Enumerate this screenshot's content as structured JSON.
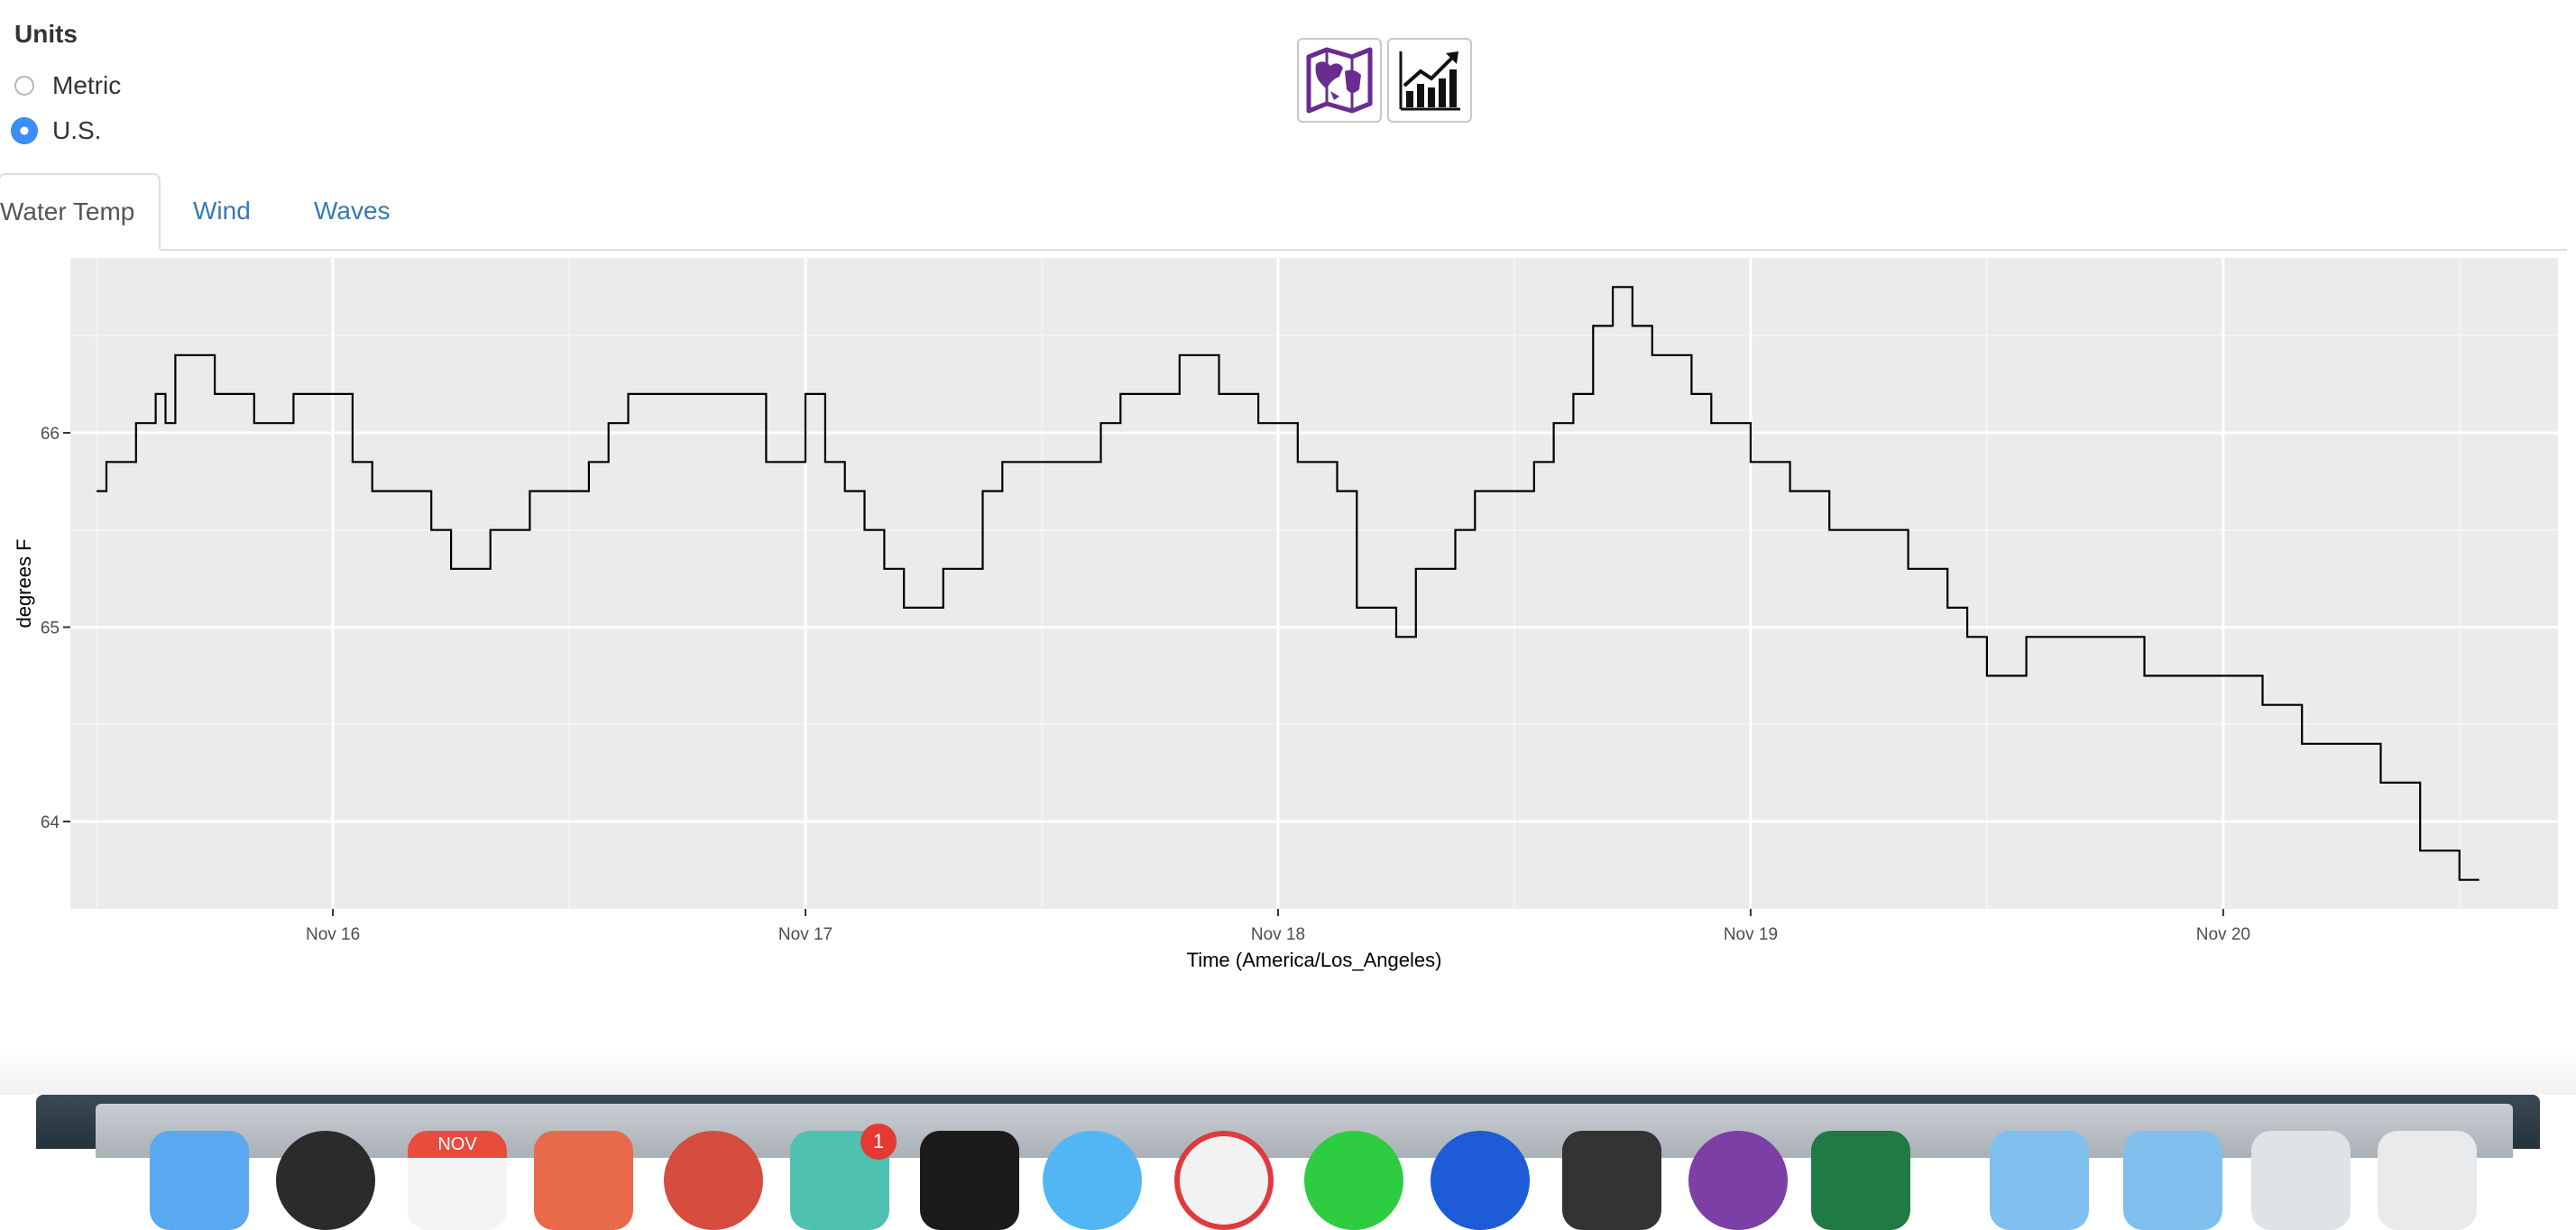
{
  "units": {
    "title": "Units",
    "options": [
      {
        "label": "Metric",
        "selected": false
      },
      {
        "label": "U.S.",
        "selected": true
      }
    ]
  },
  "toolbar": {
    "map_icon": "map-icon",
    "chart_icon": "chart-icon",
    "accent": "#6a2c91"
  },
  "tabs": [
    {
      "label": "Water Temp",
      "active": true
    },
    {
      "label": "Wind",
      "active": false
    },
    {
      "label": "Waves",
      "active": false
    }
  ],
  "chart_data": {
    "type": "line",
    "xlabel": "Time (America/Los_Angeles)",
    "ylabel": "degrees F",
    "x_ticks": [
      "Nov 16",
      "Nov 17",
      "Nov 18",
      "Nov 19",
      "Nov 20"
    ],
    "y_ticks": [
      64,
      65,
      66
    ],
    "xlim": [
      "2016-11-15T10:40",
      "2016-11-20T17:00"
    ],
    "ylim": [
      63.55,
      66.9
    ],
    "grid": true,
    "series": [
      {
        "x": [
          "2016-11-15T12:00",
          "2016-11-15T12:30",
          "2016-11-15T13:00",
          "2016-11-15T14:00",
          "2016-11-15T15:00",
          "2016-11-15T15:30",
          "2016-11-15T16:00",
          "2016-11-15T17:00",
          "2016-11-15T18:00",
          "2016-11-15T19:00",
          "2016-11-15T20:00",
          "2016-11-15T21:00",
          "2016-11-15T22:00",
          "2016-11-16T00:00",
          "2016-11-16T01:00",
          "2016-11-16T02:00",
          "2016-11-16T03:00",
          "2016-11-16T05:00",
          "2016-11-16T06:00",
          "2016-11-16T07:00",
          "2016-11-16T08:00",
          "2016-11-16T09:00",
          "2016-11-16T10:00",
          "2016-11-16T11:00",
          "2016-11-16T13:00",
          "2016-11-16T14:00",
          "2016-11-16T15:00",
          "2016-11-16T17:00",
          "2016-11-16T19:00",
          "2016-11-16T20:00",
          "2016-11-16T22:00",
          "2016-11-17T00:00",
          "2016-11-17T01:00",
          "2016-11-17T02:00",
          "2016-11-17T03:00",
          "2016-11-17T04:00",
          "2016-11-17T05:00",
          "2016-11-17T06:00",
          "2016-11-17T07:00",
          "2016-11-17T09:00",
          "2016-11-17T10:00",
          "2016-11-17T11:00",
          "2016-11-17T13:00",
          "2016-11-17T15:00",
          "2016-11-17T16:00",
          "2016-11-17T17:00",
          "2016-11-17T19:00",
          "2016-11-17T21:00",
          "2016-11-17T23:00",
          "2016-11-18T00:00",
          "2016-11-18T01:00",
          "2016-11-18T02:00",
          "2016-11-18T03:00",
          "2016-11-18T04:00",
          "2016-11-18T06:00",
          "2016-11-18T07:00",
          "2016-11-18T09:00",
          "2016-11-18T10:00",
          "2016-11-18T11:00",
          "2016-11-18T12:00",
          "2016-11-18T13:00",
          "2016-11-18T14:00",
          "2016-11-18T15:00",
          "2016-11-18T16:00",
          "2016-11-18T17:00",
          "2016-11-18T18:00",
          "2016-11-18T19:00",
          "2016-11-18T20:00",
          "2016-11-18T21:00",
          "2016-11-18T22:00",
          "2016-11-19T00:00",
          "2016-11-19T02:00",
          "2016-11-19T04:00",
          "2016-11-19T05:00",
          "2016-11-19T06:00",
          "2016-11-19T07:00",
          "2016-11-19T08:00",
          "2016-11-19T09:00",
          "2016-11-19T10:00",
          "2016-11-19T11:00",
          "2016-11-19T12:00",
          "2016-11-19T14:00",
          "2016-11-19T16:00",
          "2016-11-19T18:00",
          "2016-11-19T20:00",
          "2016-11-19T22:00",
          "2016-11-20T00:00",
          "2016-11-20T02:00",
          "2016-11-20T04:00",
          "2016-11-20T06:00",
          "2016-11-20T07:00",
          "2016-11-20T08:00",
          "2016-11-20T10:00",
          "2016-11-20T12:00"
        ],
        "y": [
          65.7,
          65.85,
          65.85,
          66.05,
          66.2,
          66.05,
          66.4,
          66.4,
          66.2,
          66.2,
          66.05,
          66.05,
          66.2,
          66.2,
          65.85,
          65.7,
          65.7,
          65.5,
          65.3,
          65.3,
          65.5,
          65.5,
          65.7,
          65.7,
          65.85,
          66.05,
          66.2,
          66.2,
          66.2,
          66.2,
          65.85,
          66.2,
          65.85,
          65.7,
          65.5,
          65.3,
          65.1,
          65.1,
          65.3,
          65.7,
          65.85,
          65.85,
          65.85,
          66.05,
          66.2,
          66.2,
          66.4,
          66.2,
          66.05,
          66.05,
          65.85,
          65.85,
          65.7,
          65.1,
          64.95,
          65.3,
          65.5,
          65.7,
          65.7,
          65.7,
          65.85,
          66.05,
          66.2,
          66.55,
          66.75,
          66.55,
          66.4,
          66.4,
          66.2,
          66.05,
          65.85,
          65.7,
          65.5,
          65.5,
          65.5,
          65.5,
          65.3,
          65.3,
          65.1,
          64.95,
          64.75,
          64.95,
          64.95,
          64.95,
          64.75,
          64.75,
          64.75,
          64.6,
          64.4,
          64.4,
          64.4,
          64.2,
          63.85,
          63.7
        ]
      }
    ]
  },
  "dock": {
    "badge_count": "1",
    "calendar_month": "NOV"
  }
}
